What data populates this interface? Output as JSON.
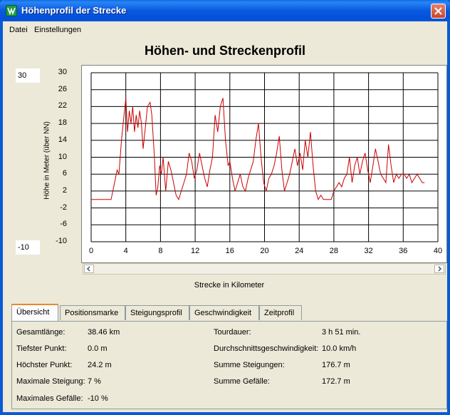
{
  "window": {
    "title": "Höhenprofil der Strecke"
  },
  "menu": {
    "items": [
      "Datei",
      "Einstellungen"
    ]
  },
  "chart_title": "Höhen- und Streckenprofil",
  "scale": {
    "max": "30",
    "min": "-10"
  },
  "chart_data": {
    "type": "line",
    "title": "Höhen- und Streckenprofil",
    "xlabel": "Strecke in Kilometer",
    "ylabel": "Höhe in Meter (über NN)",
    "xlim": [
      0,
      40
    ],
    "ylim": [
      -10,
      30
    ],
    "grid": true,
    "x_ticks": [
      "0",
      "4",
      "8",
      "12",
      "16",
      "20",
      "24",
      "28",
      "32",
      "36",
      "40"
    ],
    "y_ticks": [
      "30",
      "26",
      "22",
      "18",
      "14",
      "10",
      "6",
      "2",
      "-2",
      "-6",
      "-10"
    ],
    "series": [
      {
        "color": "#cc0000",
        "x": [
          0,
          2.3,
          2.6,
          3.0,
          3.2,
          3.5,
          3.7,
          3.9,
          4.0,
          4.2,
          4.4,
          4.6,
          4.8,
          5.0,
          5.2,
          5.4,
          5.6,
          5.8,
          6.0,
          6.2,
          6.5,
          6.8,
          7.0,
          7.3,
          7.5,
          7.7,
          7.9,
          8.1,
          8.3,
          8.6,
          8.9,
          9.2,
          9.5,
          9.8,
          10.1,
          10.4,
          10.7,
          11.0,
          11.3,
          11.6,
          11.9,
          12.2,
          12.5,
          12.8,
          13.1,
          13.4,
          13.7,
          14.0,
          14.3,
          14.6,
          14.9,
          15.2,
          15.5,
          15.8,
          16.0,
          16.3,
          16.6,
          16.9,
          17.2,
          17.5,
          17.8,
          18.1,
          18.4,
          18.7,
          19.0,
          19.3,
          19.6,
          19.9,
          20.2,
          20.5,
          20.8,
          21.1,
          21.4,
          21.7,
          22.0,
          22.3,
          22.6,
          22.9,
          23.2,
          23.5,
          23.8,
          24.1,
          24.4,
          24.7,
          25.0,
          25.3,
          25.6,
          25.9,
          26.2,
          26.5,
          26.8,
          27.1,
          27.4,
          27.7,
          28.0,
          28.3,
          28.6,
          28.9,
          29.2,
          29.5,
          29.8,
          30.1,
          30.4,
          30.7,
          31.0,
          31.3,
          31.6,
          31.9,
          32.2,
          32.5,
          32.8,
          33.1,
          33.4,
          33.7,
          34.0,
          34.3,
          34.6,
          34.9,
          35.2,
          35.5,
          35.8,
          36.1,
          36.4,
          36.7,
          37.0,
          37.3,
          37.6,
          37.9,
          38.2,
          38.46
        ],
        "y": [
          0,
          0,
          3,
          7,
          6,
          14,
          18,
          22,
          24,
          16,
          21,
          18,
          22,
          16,
          20,
          17,
          21,
          18,
          12,
          16,
          22,
          23,
          20,
          10,
          1,
          3,
          8,
          6,
          10,
          2,
          9,
          7,
          4,
          1,
          0,
          2,
          4,
          6,
          11,
          9,
          5,
          7,
          11,
          8,
          5,
          3,
          7,
          10,
          20,
          16,
          22,
          24,
          14,
          8,
          9,
          5,
          2,
          4,
          6,
          3,
          2,
          5,
          7,
          9,
          14,
          18,
          10,
          4,
          2,
          5,
          6,
          8,
          11,
          15,
          7,
          2,
          4,
          6,
          9,
          12,
          8,
          11,
          7,
          14,
          10,
          16,
          8,
          2,
          0,
          1,
          0,
          0,
          0,
          0,
          2,
          3,
          4,
          3,
          5,
          6,
          10,
          4,
          8,
          10,
          6,
          9,
          11,
          7,
          4,
          8,
          12,
          9,
          6,
          5,
          4,
          13,
          8,
          4,
          6,
          5,
          6,
          6,
          5,
          6,
          4,
          5,
          6,
          5,
          4,
          4
        ]
      }
    ]
  },
  "tabs": [
    {
      "label": "Übersicht",
      "active": true
    },
    {
      "label": "Positionsmarke"
    },
    {
      "label": "Steigungsprofil"
    },
    {
      "label": "Geschwindigkeit"
    },
    {
      "label": "Zeitprofil"
    }
  ],
  "stats_left": [
    {
      "label": "Gesamtlänge:",
      "value": "38.46 km"
    },
    {
      "label": "Tiefster Punkt:",
      "value": "0.0 m"
    },
    {
      "label": "Höchster Punkt:",
      "value": "24.2 m"
    },
    {
      "label": "Maximale Steigung:",
      "value": "7 %"
    },
    {
      "label": "Maximales Gefälle:",
      "value": "-10 %"
    }
  ],
  "stats_right": [
    {
      "label": "Tourdauer:",
      "value": "3 h 51 min."
    },
    {
      "label": "Durchschnittsgeschwindigkeit:",
      "value": "10.0 km/h"
    },
    {
      "label": "Summe Steigungen:",
      "value": "176.7 m"
    },
    {
      "label": "Summe Gefälle:",
      "value": "172.7 m"
    }
  ]
}
